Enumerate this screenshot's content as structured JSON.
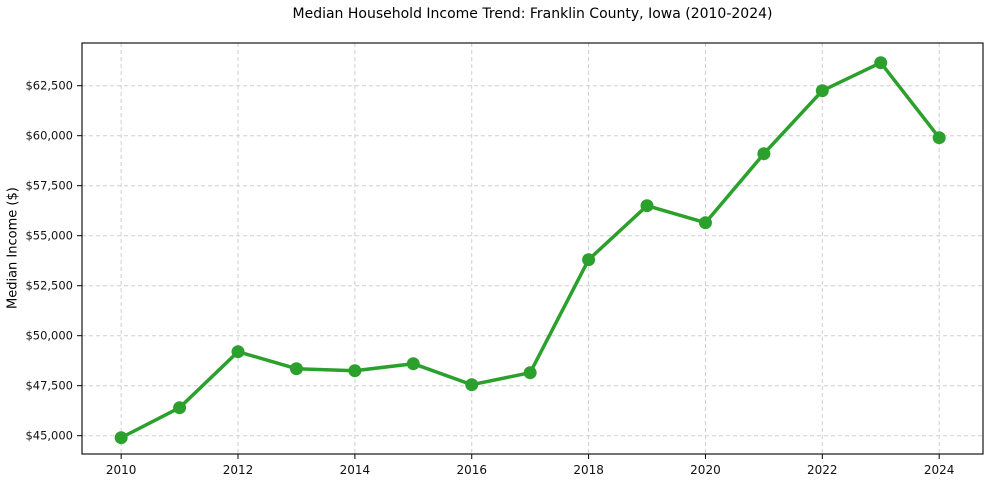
{
  "chart_data": {
    "type": "line",
    "title": "Median Household Income Trend: Franklin County, Iowa (2010-2024)",
    "xlabel": "",
    "ylabel": "Median Income ($)",
    "x": [
      2010,
      2011,
      2012,
      2013,
      2014,
      2015,
      2016,
      2017,
      2018,
      2019,
      2020,
      2021,
      2022,
      2023,
      2024
    ],
    "values": [
      44900,
      46400,
      49200,
      48350,
      48250,
      48600,
      47550,
      48150,
      53800,
      56500,
      55650,
      59100,
      62250,
      63650,
      59900
    ],
    "xticks": [
      2010,
      2012,
      2014,
      2016,
      2018,
      2020,
      2022,
      2024
    ],
    "xtick_labels": [
      "2010",
      "2012",
      "2014",
      "2016",
      "2018",
      "2020",
      "2022",
      "2024"
    ],
    "yticks": [
      45000,
      47500,
      50000,
      52500,
      55000,
      57500,
      60000,
      62500
    ],
    "ytick_labels": [
      "$45,000",
      "$47,500",
      "$50,000",
      "$52,500",
      "$55,000",
      "$57,500",
      "$60,000",
      "$62,500"
    ],
    "xlim": [
      2009.33,
      2024.75
    ],
    "ylim": [
      44085,
      64635
    ],
    "grid": true,
    "legend": false,
    "line_color": "#2ca02c",
    "grid_color": "#cfcfcf",
    "marker": "circle"
  }
}
